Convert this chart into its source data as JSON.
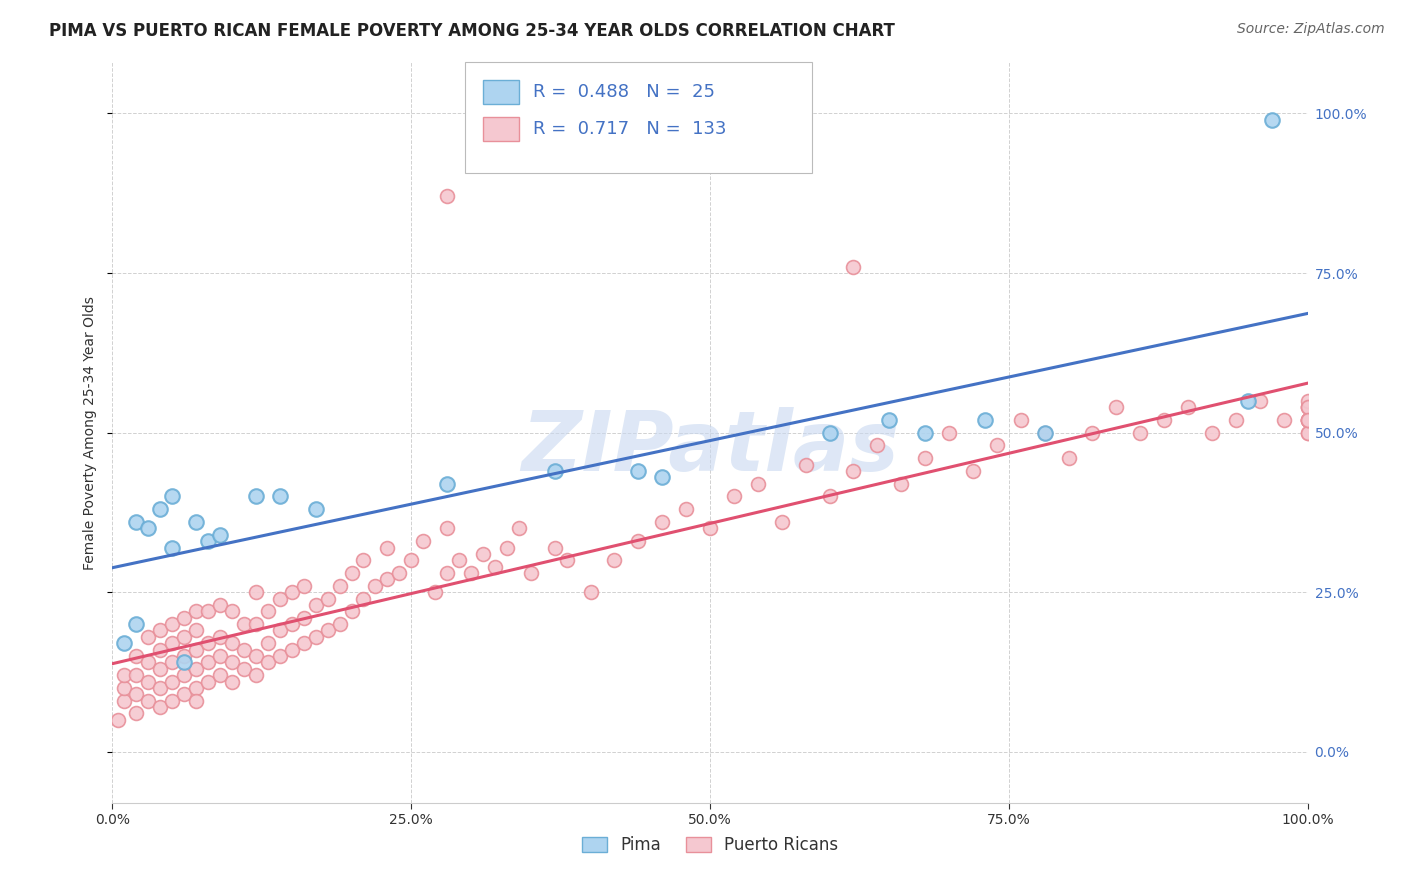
{
  "title": "PIMA VS PUERTO RICAN FEMALE POVERTY AMONG 25-34 YEAR OLDS CORRELATION CHART",
  "source": "Source: ZipAtlas.com",
  "ylabel": "Female Poverty Among 25-34 Year Olds",
  "xlim": [
    0.0,
    1.0
  ],
  "ylim": [
    -0.08,
    1.08
  ],
  "pima_R": 0.488,
  "pima_N": 25,
  "pr_R": 0.717,
  "pr_N": 133,
  "pima_color": "#6baed6",
  "pima_color_fill": "#aed4f0",
  "pr_color": "#e8909a",
  "pr_color_fill": "#f5c8d0",
  "line_blue": "#4472c4",
  "line_pink": "#e05070",
  "watermark_color": "#c8d8f0",
  "background_color": "#ffffff",
  "grid_color": "#cccccc",
  "title_fontsize": 12,
  "label_fontsize": 10,
  "tick_fontsize": 10,
  "legend_fontsize": 13,
  "source_fontsize": 10,
  "pima_x": [
    0.01,
    0.02,
    0.02,
    0.03,
    0.04,
    0.05,
    0.05,
    0.06,
    0.07,
    0.08,
    0.09,
    0.12,
    0.14,
    0.17,
    0.28,
    0.37,
    0.44,
    0.46,
    0.6,
    0.65,
    0.68,
    0.73,
    0.78,
    0.95,
    0.97
  ],
  "pima_y": [
    0.17,
    0.36,
    0.2,
    0.35,
    0.38,
    0.4,
    0.32,
    0.14,
    0.36,
    0.33,
    0.34,
    0.4,
    0.4,
    0.38,
    0.42,
    0.44,
    0.44,
    0.43,
    0.5,
    0.52,
    0.5,
    0.52,
    0.5,
    0.55,
    0.99
  ],
  "pr_x": [
    0.005,
    0.01,
    0.01,
    0.01,
    0.02,
    0.02,
    0.02,
    0.02,
    0.03,
    0.03,
    0.03,
    0.03,
    0.04,
    0.04,
    0.04,
    0.04,
    0.04,
    0.05,
    0.05,
    0.05,
    0.05,
    0.05,
    0.06,
    0.06,
    0.06,
    0.06,
    0.06,
    0.07,
    0.07,
    0.07,
    0.07,
    0.07,
    0.07,
    0.08,
    0.08,
    0.08,
    0.08,
    0.09,
    0.09,
    0.09,
    0.09,
    0.1,
    0.1,
    0.1,
    0.1,
    0.11,
    0.11,
    0.11,
    0.12,
    0.12,
    0.12,
    0.12,
    0.13,
    0.13,
    0.13,
    0.14,
    0.14,
    0.14,
    0.15,
    0.15,
    0.15,
    0.16,
    0.16,
    0.16,
    0.17,
    0.17,
    0.18,
    0.18,
    0.19,
    0.19,
    0.2,
    0.2,
    0.21,
    0.21,
    0.22,
    0.23,
    0.23,
    0.24,
    0.25,
    0.26,
    0.27,
    0.28,
    0.28,
    0.29,
    0.3,
    0.31,
    0.32,
    0.33,
    0.34,
    0.35,
    0.37,
    0.38,
    0.4,
    0.42,
    0.44,
    0.46,
    0.48,
    0.5,
    0.52,
    0.54,
    0.56,
    0.58,
    0.6,
    0.62,
    0.64,
    0.66,
    0.68,
    0.7,
    0.72,
    0.74,
    0.76,
    0.78,
    0.8,
    0.82,
    0.84,
    0.86,
    0.88,
    0.9,
    0.92,
    0.94,
    0.96,
    0.98,
    1.0,
    1.0,
    1.0,
    1.0,
    1.0,
    1.0,
    1.0,
    1.0,
    1.0,
    1.0,
    1.0
  ],
  "pr_y": [
    0.05,
    0.08,
    0.1,
    0.12,
    0.06,
    0.09,
    0.12,
    0.15,
    0.08,
    0.11,
    0.14,
    0.18,
    0.07,
    0.1,
    0.13,
    0.16,
    0.19,
    0.08,
    0.11,
    0.14,
    0.17,
    0.2,
    0.09,
    0.12,
    0.15,
    0.18,
    0.21,
    0.1,
    0.13,
    0.16,
    0.19,
    0.22,
    0.08,
    0.11,
    0.14,
    0.17,
    0.22,
    0.12,
    0.15,
    0.18,
    0.23,
    0.11,
    0.14,
    0.17,
    0.22,
    0.13,
    0.16,
    0.2,
    0.12,
    0.15,
    0.2,
    0.25,
    0.14,
    0.17,
    0.22,
    0.15,
    0.19,
    0.24,
    0.16,
    0.2,
    0.25,
    0.17,
    0.21,
    0.26,
    0.18,
    0.23,
    0.19,
    0.24,
    0.2,
    0.26,
    0.22,
    0.28,
    0.24,
    0.3,
    0.26,
    0.27,
    0.32,
    0.28,
    0.3,
    0.33,
    0.25,
    0.28,
    0.35,
    0.3,
    0.28,
    0.31,
    0.29,
    0.32,
    0.35,
    0.28,
    0.32,
    0.3,
    0.25,
    0.3,
    0.33,
    0.36,
    0.38,
    0.35,
    0.4,
    0.42,
    0.36,
    0.45,
    0.4,
    0.44,
    0.48,
    0.42,
    0.46,
    0.5,
    0.44,
    0.48,
    0.52,
    0.5,
    0.46,
    0.5,
    0.54,
    0.5,
    0.52,
    0.54,
    0.5,
    0.52,
    0.55,
    0.52,
    0.5,
    0.52,
    0.54,
    0.52,
    0.5,
    0.54,
    0.52,
    0.55,
    0.52,
    0.54,
    0.52
  ]
}
